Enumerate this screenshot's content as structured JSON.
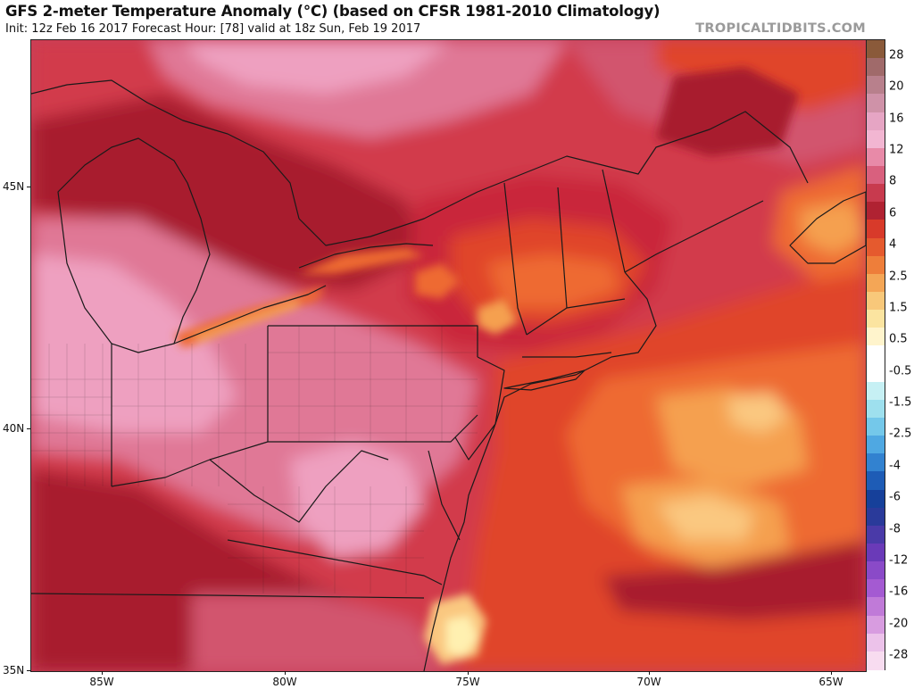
{
  "header": {
    "title": "GFS 2-meter Temperature Anomaly (°C) (based on CFSR 1981-2010 Climatology)",
    "subtitle": "Init: 12z Feb 16 2017   Forecast Hour: [78]   valid at 18z Sun, Feb 19 2017",
    "watermark": "TROPICALTIDBITS.COM"
  },
  "map": {
    "region": "Northeastern United States and Great Lakes",
    "lat_labels": [
      "45N",
      "40N",
      "35N"
    ],
    "lon_labels": [
      "85W",
      "80W",
      "75W",
      "70W",
      "65W"
    ],
    "colors": {
      "deep_red": "#a81c2e",
      "red": "#c9283a",
      "crimson": "#d23a4c",
      "rose": "#d2546e",
      "pink": "#e07896",
      "light_pink": "#eea0c0",
      "orange_red": "#e0452c",
      "orange": "#ee6a30",
      "light_orange": "#f5a050",
      "pale_orange": "#fac880",
      "pale_yellow": "#fff0b0",
      "border": "#1a1a1a"
    }
  },
  "colorbar": {
    "labels": [
      "28",
      "20",
      "16",
      "12",
      "8",
      "6",
      "4",
      "2.5",
      "1.5",
      "0.5",
      "-0.5",
      "-1.5",
      "-2.5",
      "-4",
      "-6",
      "-8",
      "-12",
      "-16",
      "-20",
      "-28"
    ],
    "swatches": [
      "#8a5a3a",
      "#a06a6a",
      "#b8808c",
      "#cf92a8",
      "#e6a5c4",
      "#f2b6d2",
      "#e88aa8",
      "#d9607e",
      "#c83a4e",
      "#b02232",
      "#d83a2a",
      "#e55a2e",
      "#ee7e3a",
      "#f4a656",
      "#f8c87a",
      "#fbe4a0",
      "#fff4cc",
      "#ffffff",
      "#ffffff",
      "#c6f0f4",
      "#9ee0ee",
      "#74c8ea",
      "#4fa8e2",
      "#3282d0",
      "#1e5cb6",
      "#16409a",
      "#2a3a9a",
      "#4a3aa8",
      "#6a3ab8",
      "#8a4ac8",
      "#a45ad2",
      "#c07ad8",
      "#d89ce0",
      "#ecc2ea",
      "#f8dcf0"
    ]
  }
}
